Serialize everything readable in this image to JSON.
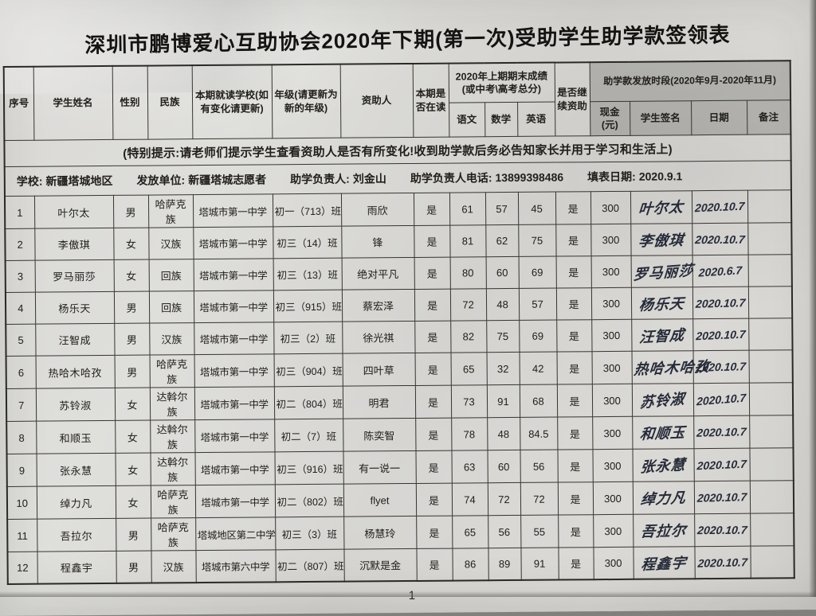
{
  "title": "深圳市鹏博爱心互助协会2020年下期(第一次)受助学生助学款签领表",
  "notice": "(特别提示:请老师们提示学生查看资助人是否有所变化!收到助学款后务必告知家长并用于学习和生活上)",
  "info": {
    "school_label": "学校:",
    "school": "新疆塔城地区",
    "issuer_label": "发放单位:",
    "issuer": "新疆塔城志愿者",
    "manager_label": "助学负责人:",
    "manager": "刘金山",
    "phone_label": "助学负责人电话:",
    "phone": "13899398486",
    "date_label": "填表日期:",
    "date": "2020.9.1"
  },
  "headers": {
    "seq": "序号",
    "name": "学生姓名",
    "gender": "性别",
    "ethnic": "民族",
    "school": "本期就读学校(如有变化请更新)",
    "grade": "年级(请更新为新的年级)",
    "sponsor": "资助人",
    "enrolled": "本期是否在读",
    "scores_group": "2020年上期期末成绩 (或中考\\高考总分)",
    "chinese": "语文",
    "math": "数学",
    "english": "英语",
    "cont": "是否继续资助",
    "payout_group": "助学款发放时段(2020年9月-2020年11月)",
    "cash": "现金(元)",
    "signature": "学生签名",
    "date": "日期",
    "remark": "备注"
  },
  "rows": [
    {
      "seq": "1",
      "name": "叶尔太",
      "gender": "男",
      "ethnic": "哈萨克族",
      "school": "塔城市第一中学",
      "grade": "初一（713）班",
      "sponsor": "雨欣",
      "enrolled": "是",
      "chinese": "61",
      "math": "57",
      "english": "45",
      "cont": "是",
      "cash": "300",
      "sign": "叶尔太",
      "sign_date": "2020.10.7",
      "remark": ""
    },
    {
      "seq": "2",
      "name": "李傲琪",
      "gender": "女",
      "ethnic": "汉族",
      "school": "塔城市第一中学",
      "grade": "初三（14）班",
      "sponsor": "锋",
      "enrolled": "是",
      "chinese": "81",
      "math": "62",
      "english": "75",
      "cont": "是",
      "cash": "300",
      "sign": "李傲琪",
      "sign_date": "2020.10.7",
      "remark": ""
    },
    {
      "seq": "3",
      "name": "罗马丽莎",
      "gender": "女",
      "ethnic": "回族",
      "school": "塔城市第一中学",
      "grade": "初三（13）班",
      "sponsor": "绝对平凡",
      "enrolled": "是",
      "chinese": "80",
      "math": "60",
      "english": "69",
      "cont": "是",
      "cash": "300",
      "sign": "罗马丽莎",
      "sign_date": "2020.6.7",
      "remark": ""
    },
    {
      "seq": "4",
      "name": "杨乐天",
      "gender": "男",
      "ethnic": "回族",
      "school": "塔城市第一中学",
      "grade": "初三（915）班",
      "sponsor": "蔡宏泽",
      "enrolled": "是",
      "chinese": "72",
      "math": "48",
      "english": "57",
      "cont": "是",
      "cash": "300",
      "sign": "杨乐天",
      "sign_date": "2020.10.7",
      "remark": ""
    },
    {
      "seq": "5",
      "name": "汪智成",
      "gender": "男",
      "ethnic": "汉族",
      "school": "塔城市第一中学",
      "grade": "初三（2）班",
      "sponsor": "徐光祺",
      "enrolled": "是",
      "chinese": "82",
      "math": "75",
      "english": "69",
      "cont": "是",
      "cash": "300",
      "sign": "汪智成",
      "sign_date": "2020.10.7",
      "remark": ""
    },
    {
      "seq": "6",
      "name": "热哈木哈孜",
      "gender": "男",
      "ethnic": "哈萨克族",
      "school": "塔城市第一中学",
      "grade": "初三（904）班",
      "sponsor": "四叶草",
      "enrolled": "是",
      "chinese": "65",
      "math": "32",
      "english": "42",
      "cont": "是",
      "cash": "300",
      "sign": "热哈木哈孜",
      "sign_date": "2020.10.7",
      "remark": ""
    },
    {
      "seq": "7",
      "name": "苏铃淑",
      "gender": "女",
      "ethnic": "达斡尔族",
      "school": "塔城市第一中学",
      "grade": "初二（804）班",
      "sponsor": "明君",
      "enrolled": "是",
      "chinese": "73",
      "math": "91",
      "english": "68",
      "cont": "是",
      "cash": "300",
      "sign": "苏铃淑",
      "sign_date": "2020.10.7",
      "remark": ""
    },
    {
      "seq": "8",
      "name": "和顺玉",
      "gender": "女",
      "ethnic": "达斡尔族",
      "school": "塔城市第一中学",
      "grade": "初二（7）班",
      "sponsor": "陈奕智",
      "enrolled": "是",
      "chinese": "78",
      "math": "48",
      "english": "84.5",
      "cont": "是",
      "cash": "300",
      "sign": "和顺玉",
      "sign_date": "2020.10.7",
      "remark": ""
    },
    {
      "seq": "9",
      "name": "张永慧",
      "gender": "女",
      "ethnic": "达斡尔族",
      "school": "塔城市第一中学",
      "grade": "初三（916）班",
      "sponsor": "有一说一",
      "enrolled": "是",
      "chinese": "63",
      "math": "60",
      "english": "56",
      "cont": "是",
      "cash": "300",
      "sign": "张永慧",
      "sign_date": "2020.10.7",
      "remark": ""
    },
    {
      "seq": "10",
      "name": "绰力凡",
      "gender": "女",
      "ethnic": "哈萨克族",
      "school": "塔城市第一中学",
      "grade": "初二（802）班",
      "sponsor": "flyet",
      "enrolled": "是",
      "chinese": "74",
      "math": "72",
      "english": "72",
      "cont": "是",
      "cash": "300",
      "sign": "绰力凡",
      "sign_date": "2020.10.7",
      "remark": ""
    },
    {
      "seq": "11",
      "name": "吾拉尔",
      "gender": "男",
      "ethnic": "哈萨克族",
      "school": "塔城地区第二中学",
      "grade": "初三（3）班",
      "sponsor": "杨慧玲",
      "enrolled": "是",
      "chinese": "65",
      "math": "56",
      "english": "55",
      "cont": "是",
      "cash": "300",
      "sign": "吾拉尔",
      "sign_date": "2020.10.7",
      "remark": ""
    },
    {
      "seq": "12",
      "name": "程鑫宇",
      "gender": "男",
      "ethnic": "汉族",
      "school": "塔城市第六中学",
      "grade": "初二（807）班",
      "sponsor": "沉默是金",
      "enrolled": "是",
      "chinese": "86",
      "math": "89",
      "english": "91",
      "cont": "是",
      "cash": "300",
      "sign": "程鑫宇",
      "sign_date": "2020.10.7",
      "remark": ""
    }
  ],
  "page": {
    "number": "1"
  }
}
